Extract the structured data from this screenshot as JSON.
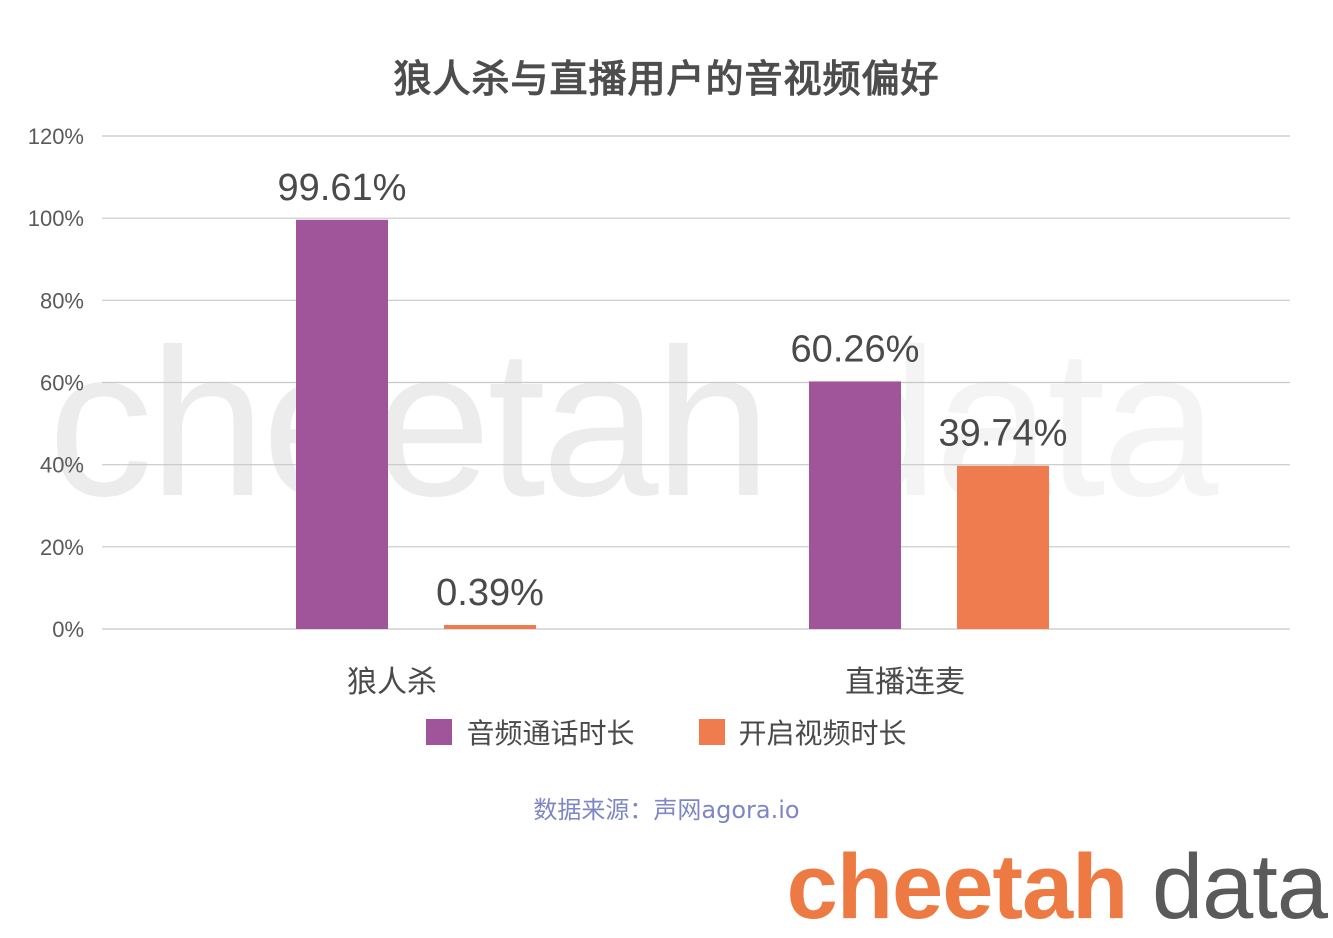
{
  "title": "狼人杀与直播用户的音视频偏好",
  "watermark": {
    "part1": "cheetah",
    "part2": "data"
  },
  "source": "数据来源：声网agora.io",
  "brand": {
    "part1": "cheetah",
    "part2": "data"
  },
  "colors": {
    "series1": "#a0559b",
    "series2": "#ee7c4e",
    "grid": "#c8c8c8",
    "axis_text": "#5a5a5a"
  },
  "chart_data": {
    "type": "bar",
    "title": "狼人杀与直播用户的音视频偏好",
    "categories": [
      "狼人杀",
      "直播连麦"
    ],
    "series": [
      {
        "name": "音频通话时长",
        "values": [
          99.61,
          60.26
        ],
        "labels": [
          "99.61%",
          "60.26%"
        ]
      },
      {
        "name": "开启视频时长",
        "values": [
          0.39,
          39.74
        ],
        "labels": [
          "0.39%",
          "39.74%"
        ]
      }
    ],
    "ylim": [
      0,
      120
    ],
    "yticks": [
      0,
      20,
      40,
      60,
      80,
      100,
      120
    ],
    "ytick_labels": [
      "0%",
      "20%",
      "40%",
      "60%",
      "80%",
      "100%",
      "120%"
    ],
    "grid": true,
    "legend_position": "bottom",
    "xlabel": "",
    "ylabel": ""
  }
}
